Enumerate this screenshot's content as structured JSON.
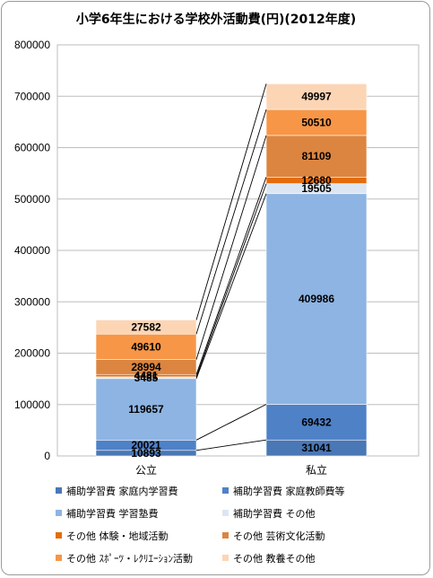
{
  "chart_data": {
    "type": "bar",
    "stacked": true,
    "title": "小学6年生における学校外活動費(円)(2012年度)",
    "categories": [
      "公立",
      "私立"
    ],
    "ylim": [
      0,
      800000
    ],
    "yticks": [
      "0",
      "100000",
      "200000",
      "300000",
      "400000",
      "500000",
      "600000",
      "700000",
      "800000"
    ],
    "grid": true,
    "legend_position": "bottom",
    "series": [
      {
        "name": "補助学習費 家庭内学習費",
        "values": [
          10893,
          31041
        ],
        "labels": [
          "10893",
          "31041"
        ],
        "color": "#4a77b5"
      },
      {
        "name": "補助学習費 家庭教師費等",
        "values": [
          20021,
          69432
        ],
        "labels": [
          "20021",
          "69432"
        ],
        "color": "#4f81c7"
      },
      {
        "name": "補助学習費 学習塾費",
        "values": [
          119657,
          409986
        ],
        "labels": [
          "119657",
          "409986"
        ],
        "color": "#8db4e2"
      },
      {
        "name": "補助学習費 その他",
        "values": [
          3485,
          19505
        ],
        "labels": [
          "3485",
          "19505"
        ],
        "color": "#dce6f2"
      },
      {
        "name": "その他 体験・地域活動",
        "values": [
          4481,
          12680
        ],
        "labels": [
          "4481",
          "12680"
        ],
        "color": "#e46c0a"
      },
      {
        "name": "その他 芸術文化活動",
        "values": [
          28994,
          81109
        ],
        "labels": [
          "28994",
          "81109"
        ],
        "color": "#dc8540"
      },
      {
        "name": "その他 ｽﾎﾟｰﾂ・ﾚｸﾘｴｰｼｮﾝ活動",
        "values": [
          49610,
          50510
        ],
        "labels": [
          "49610",
          "50510"
        ],
        "color": "#f79646"
      },
      {
        "name": "その他 教養その他",
        "values": [
          27582,
          49997
        ],
        "labels": [
          "27582",
          "49997"
        ],
        "color": "#fcd5b5"
      }
    ]
  }
}
